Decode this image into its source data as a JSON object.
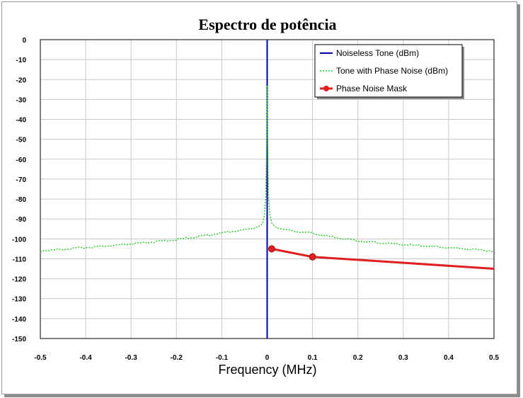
{
  "chart_data": {
    "type": "line",
    "title": "Espectro de potência",
    "xlabel": "Frequency (MHz)",
    "ylabel": "",
    "xlim": [
      -0.5,
      0.5
    ],
    "ylim": [
      -150,
      0
    ],
    "xticks": [
      "-0.5",
      "-0.4",
      "-0.3",
      "-0.2",
      "-0.1",
      "0",
      "0.1",
      "0.2",
      "0.3",
      "0.4",
      "0.5"
    ],
    "yticks": [
      "0",
      "-10",
      "-20",
      "-30",
      "-40",
      "-50",
      "-60",
      "-70",
      "-80",
      "-90",
      "-100",
      "-110",
      "-120",
      "-130",
      "-140",
      "-150"
    ],
    "grid": true,
    "legend_position": "top-right",
    "series": [
      {
        "name": "Noiseless Tone (dBm)",
        "color": "#0000a0",
        "style": "solid",
        "x": [
          0,
          0
        ],
        "y": [
          0,
          -150
        ]
      },
      {
        "name": "Tone with Phase Noise (dBm)",
        "color": "#22cc22",
        "style": "dotted",
        "x": [
          -0.5,
          -0.45,
          -0.4,
          -0.35,
          -0.3,
          -0.25,
          -0.2,
          -0.15,
          -0.1,
          -0.07,
          -0.05,
          -0.03,
          -0.02,
          -0.01,
          -0.006,
          -0.003,
          -0.001,
          0,
          0.001,
          0.003,
          0.006,
          0.01,
          0.02,
          0.03,
          0.05,
          0.07,
          0.1,
          0.15,
          0.2,
          0.25,
          0.3,
          0.35,
          0.4,
          0.45,
          0.5
        ],
        "y": [
          -106,
          -105.2,
          -104.3,
          -103.5,
          -102.6,
          -101.6,
          -100.3,
          -98.8,
          -97,
          -96,
          -95.4,
          -94.6,
          -93.8,
          -92,
          -88,
          -78,
          -50,
          -23,
          -50,
          -78,
          -88,
          -92,
          -94,
          -95,
          -95.8,
          -96.4,
          -97.2,
          -99.2,
          -101,
          -102,
          -102.8,
          -103.6,
          -104.4,
          -105.2,
          -106
        ]
      },
      {
        "name": "Phase Noise Mask",
        "color": "#e02020",
        "style": "solid-with-markers",
        "x": [
          0.01,
          0.1,
          0.5
        ],
        "y": [
          -105,
          -109,
          -115
        ],
        "markers_at": [
          0.01,
          0.1
        ]
      }
    ]
  }
}
